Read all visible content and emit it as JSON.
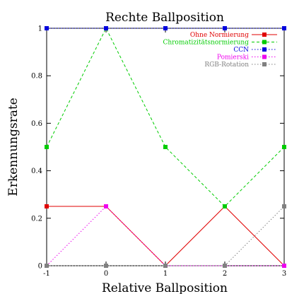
{
  "chart_data": {
    "type": "line",
    "title": "Rechte Ballposition",
    "xlabel": "Relative Ballposition",
    "ylabel": "Erkennungsrate",
    "x": [
      -1,
      0,
      1,
      2,
      3
    ],
    "xlim": [
      -1,
      3
    ],
    "ylim": [
      0,
      1
    ],
    "xticks": [
      "-1",
      "0",
      "1",
      "2",
      "3"
    ],
    "yticks": [
      "0",
      "0.2",
      "0.4",
      "0.6",
      "0.8",
      "1"
    ],
    "ytick_values": [
      0,
      0.2,
      0.4,
      0.6,
      0.8,
      1
    ],
    "grid": false,
    "legend_position": "top-right",
    "series": [
      {
        "name": "Ohne Normierung",
        "color": "#e00000",
        "dash": "solid",
        "values": [
          0.25,
          0.25,
          0,
          0.25,
          0
        ]
      },
      {
        "name": "Chromatizitätsnormierung",
        "color": "#00cc00",
        "dash": "dashed",
        "values": [
          0.5,
          1,
          0.5,
          0.25,
          0.5
        ]
      },
      {
        "name": "CCN",
        "color": "#0000dd",
        "dash": "dotted",
        "values": [
          1,
          1,
          1,
          1,
          1
        ]
      },
      {
        "name": "Pomierski",
        "color": "#ee00ee",
        "dash": "dotted",
        "values": [
          0,
          0.25,
          0,
          0,
          0
        ]
      },
      {
        "name": "RGB-Rotation",
        "color": "#808080",
        "dash": "dotted",
        "values": [
          0,
          0,
          0,
          0,
          0.25
        ]
      }
    ]
  }
}
